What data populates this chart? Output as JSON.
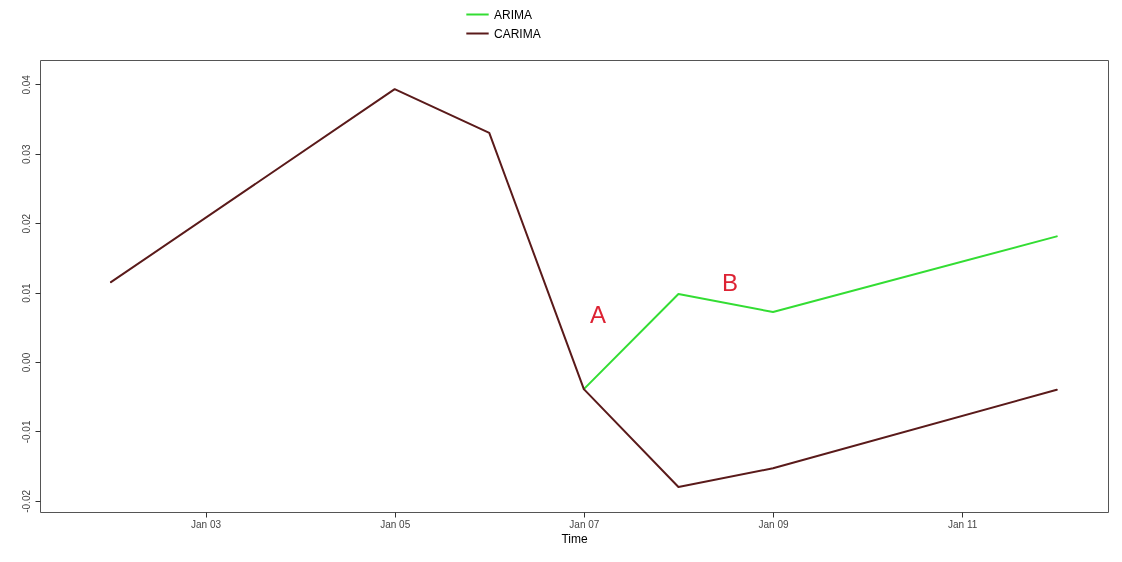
{
  "chart_data": {
    "type": "line",
    "xlabel": "Time",
    "xlim": [
      "--01-01T06:00",
      "--01-12T13:00"
    ],
    "xticks": [
      {
        "value": "--01-03",
        "label": "Jan 03"
      },
      {
        "value": "--01-05",
        "label": "Jan 05"
      },
      {
        "value": "--01-07",
        "label": "Jan 07"
      },
      {
        "value": "--01-09",
        "label": "Jan 09"
      },
      {
        "value": "--01-11",
        "label": "Jan 11"
      }
    ],
    "ylim": [
      -0.0216,
      0.0435
    ],
    "yticks": [
      -0.02,
      -0.01,
      {
        "value": 0,
        "label": "0.00"
      },
      0.01,
      0.02,
      0.03,
      0.04
    ],
    "series": [
      {
        "name": "ARIMA",
        "color": "#33dd33",
        "x": [
          "--01-07",
          "--01-08",
          "--01-09",
          "--01-12"
        ],
        "values": [
          -0.0039,
          0.0098,
          0.0072,
          0.0181
        ]
      },
      {
        "name": "CARIMA",
        "color": "#5a1a1a",
        "x": [
          "--01-02",
          "--01-05",
          "--01-06",
          "--01-07",
          "--01-08",
          "--01-09",
          "--01-12"
        ],
        "values": [
          0.0115,
          0.0393,
          0.033,
          -0.0039,
          -0.018,
          -0.0153,
          -0.004
        ]
      }
    ],
    "annotations": [
      "A",
      "B"
    ],
    "legend": "top",
    "grid": false,
    "line_style": "solid",
    "marker": "none"
  }
}
